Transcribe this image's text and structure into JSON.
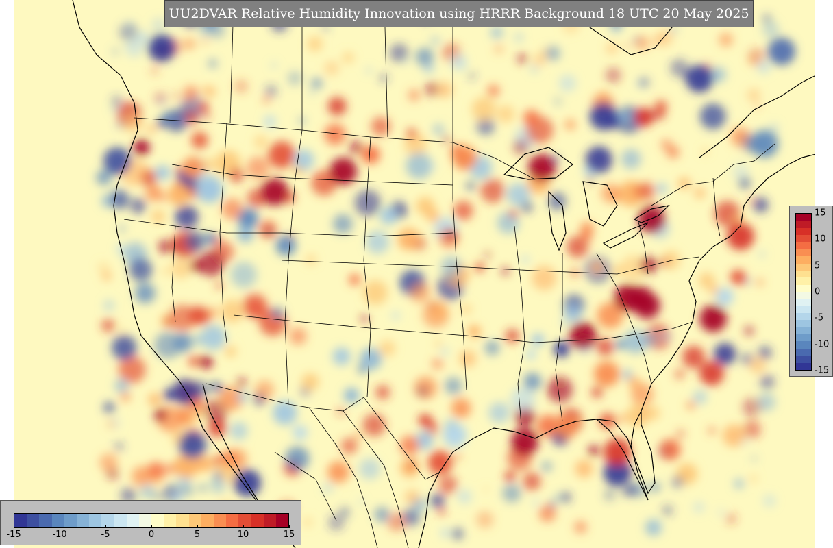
{
  "title": "UU2DVAR Relative Humidity Innovation using HRRR Background 18 UTC 20 May 2025",
  "colorbar": {
    "min": -15,
    "max": 15,
    "horizontal_ticks": [
      "-15",
      "-10",
      "-5",
      "0",
      "5",
      "10",
      "15"
    ],
    "vertical_ticks": [
      "15",
      "10",
      "5",
      "0",
      "-5",
      "-10",
      "-15"
    ],
    "colors": [
      "#313695",
      "#3d4fa0",
      "#4a6aaf",
      "#5a86bd",
      "#6e9cc9",
      "#86b2d6",
      "#9dc5e1",
      "#b4d6ea",
      "#cbe6f1",
      "#e0f2f3",
      "#f3f9e4",
      "#fffdc9",
      "#fff1a8",
      "#fee090",
      "#fdc878",
      "#fdae61",
      "#f98e52",
      "#f46d43",
      "#e34d35",
      "#d73027",
      "#bf1b26",
      "#a50026"
    ]
  },
  "map": {
    "background": "#fef9c0",
    "border_color": "#000000"
  }
}
